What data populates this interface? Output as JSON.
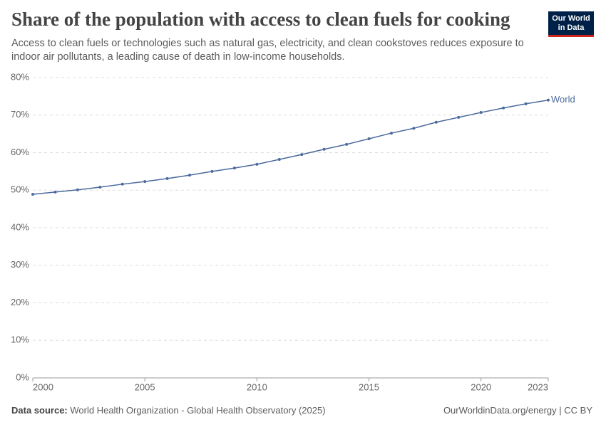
{
  "logo": [
    "Our World",
    "in Data"
  ],
  "chart_data": {
    "type": "line",
    "title": "Share of the population with access to clean fuels for cooking",
    "subtitle": "Access to clean fuels or technologies such as natural gas, electricity, and clean cookstoves reduces exposure to indoor air pollutants, a leading cause of death in low-income households.",
    "source_label": "Data source:",
    "source": "World Health Organization - Global Health Observatory (2025)",
    "credit": "OurWorldinData.org/energy | CC BY",
    "x": [
      2000,
      2001,
      2002,
      2003,
      2004,
      2005,
      2006,
      2007,
      2008,
      2009,
      2010,
      2011,
      2012,
      2013,
      2014,
      2015,
      2016,
      2017,
      2018,
      2019,
      2020,
      2021,
      2022,
      2023
    ],
    "series": [
      {
        "name": "World",
        "color": "#4c6a9c",
        "values": [
          48.9,
          49.5,
          50.1,
          50.8,
          51.6,
          52.3,
          53.1,
          54.0,
          55.0,
          55.9,
          56.9,
          58.2,
          59.5,
          60.9,
          62.2,
          63.7,
          65.2,
          66.5,
          68.1,
          69.4,
          70.7,
          71.9,
          73.0,
          74.0
        ]
      }
    ],
    "xlim": [
      2000,
      2023
    ],
    "xticks": [
      2000,
      2005,
      2010,
      2015,
      2020,
      2023
    ],
    "ylim": [
      0,
      80
    ],
    "yticks": [
      {
        "value": 0,
        "label": "0%"
      },
      {
        "value": 10,
        "label": "10%"
      },
      {
        "value": 20,
        "label": "20%"
      },
      {
        "value": 30,
        "label": "30%"
      },
      {
        "value": 40,
        "label": "40%"
      },
      {
        "value": 50,
        "label": "50%"
      },
      {
        "value": 60,
        "label": "60%"
      },
      {
        "value": 70,
        "label": "70%"
      },
      {
        "value": 80,
        "label": "80%"
      }
    ],
    "grid": true
  }
}
